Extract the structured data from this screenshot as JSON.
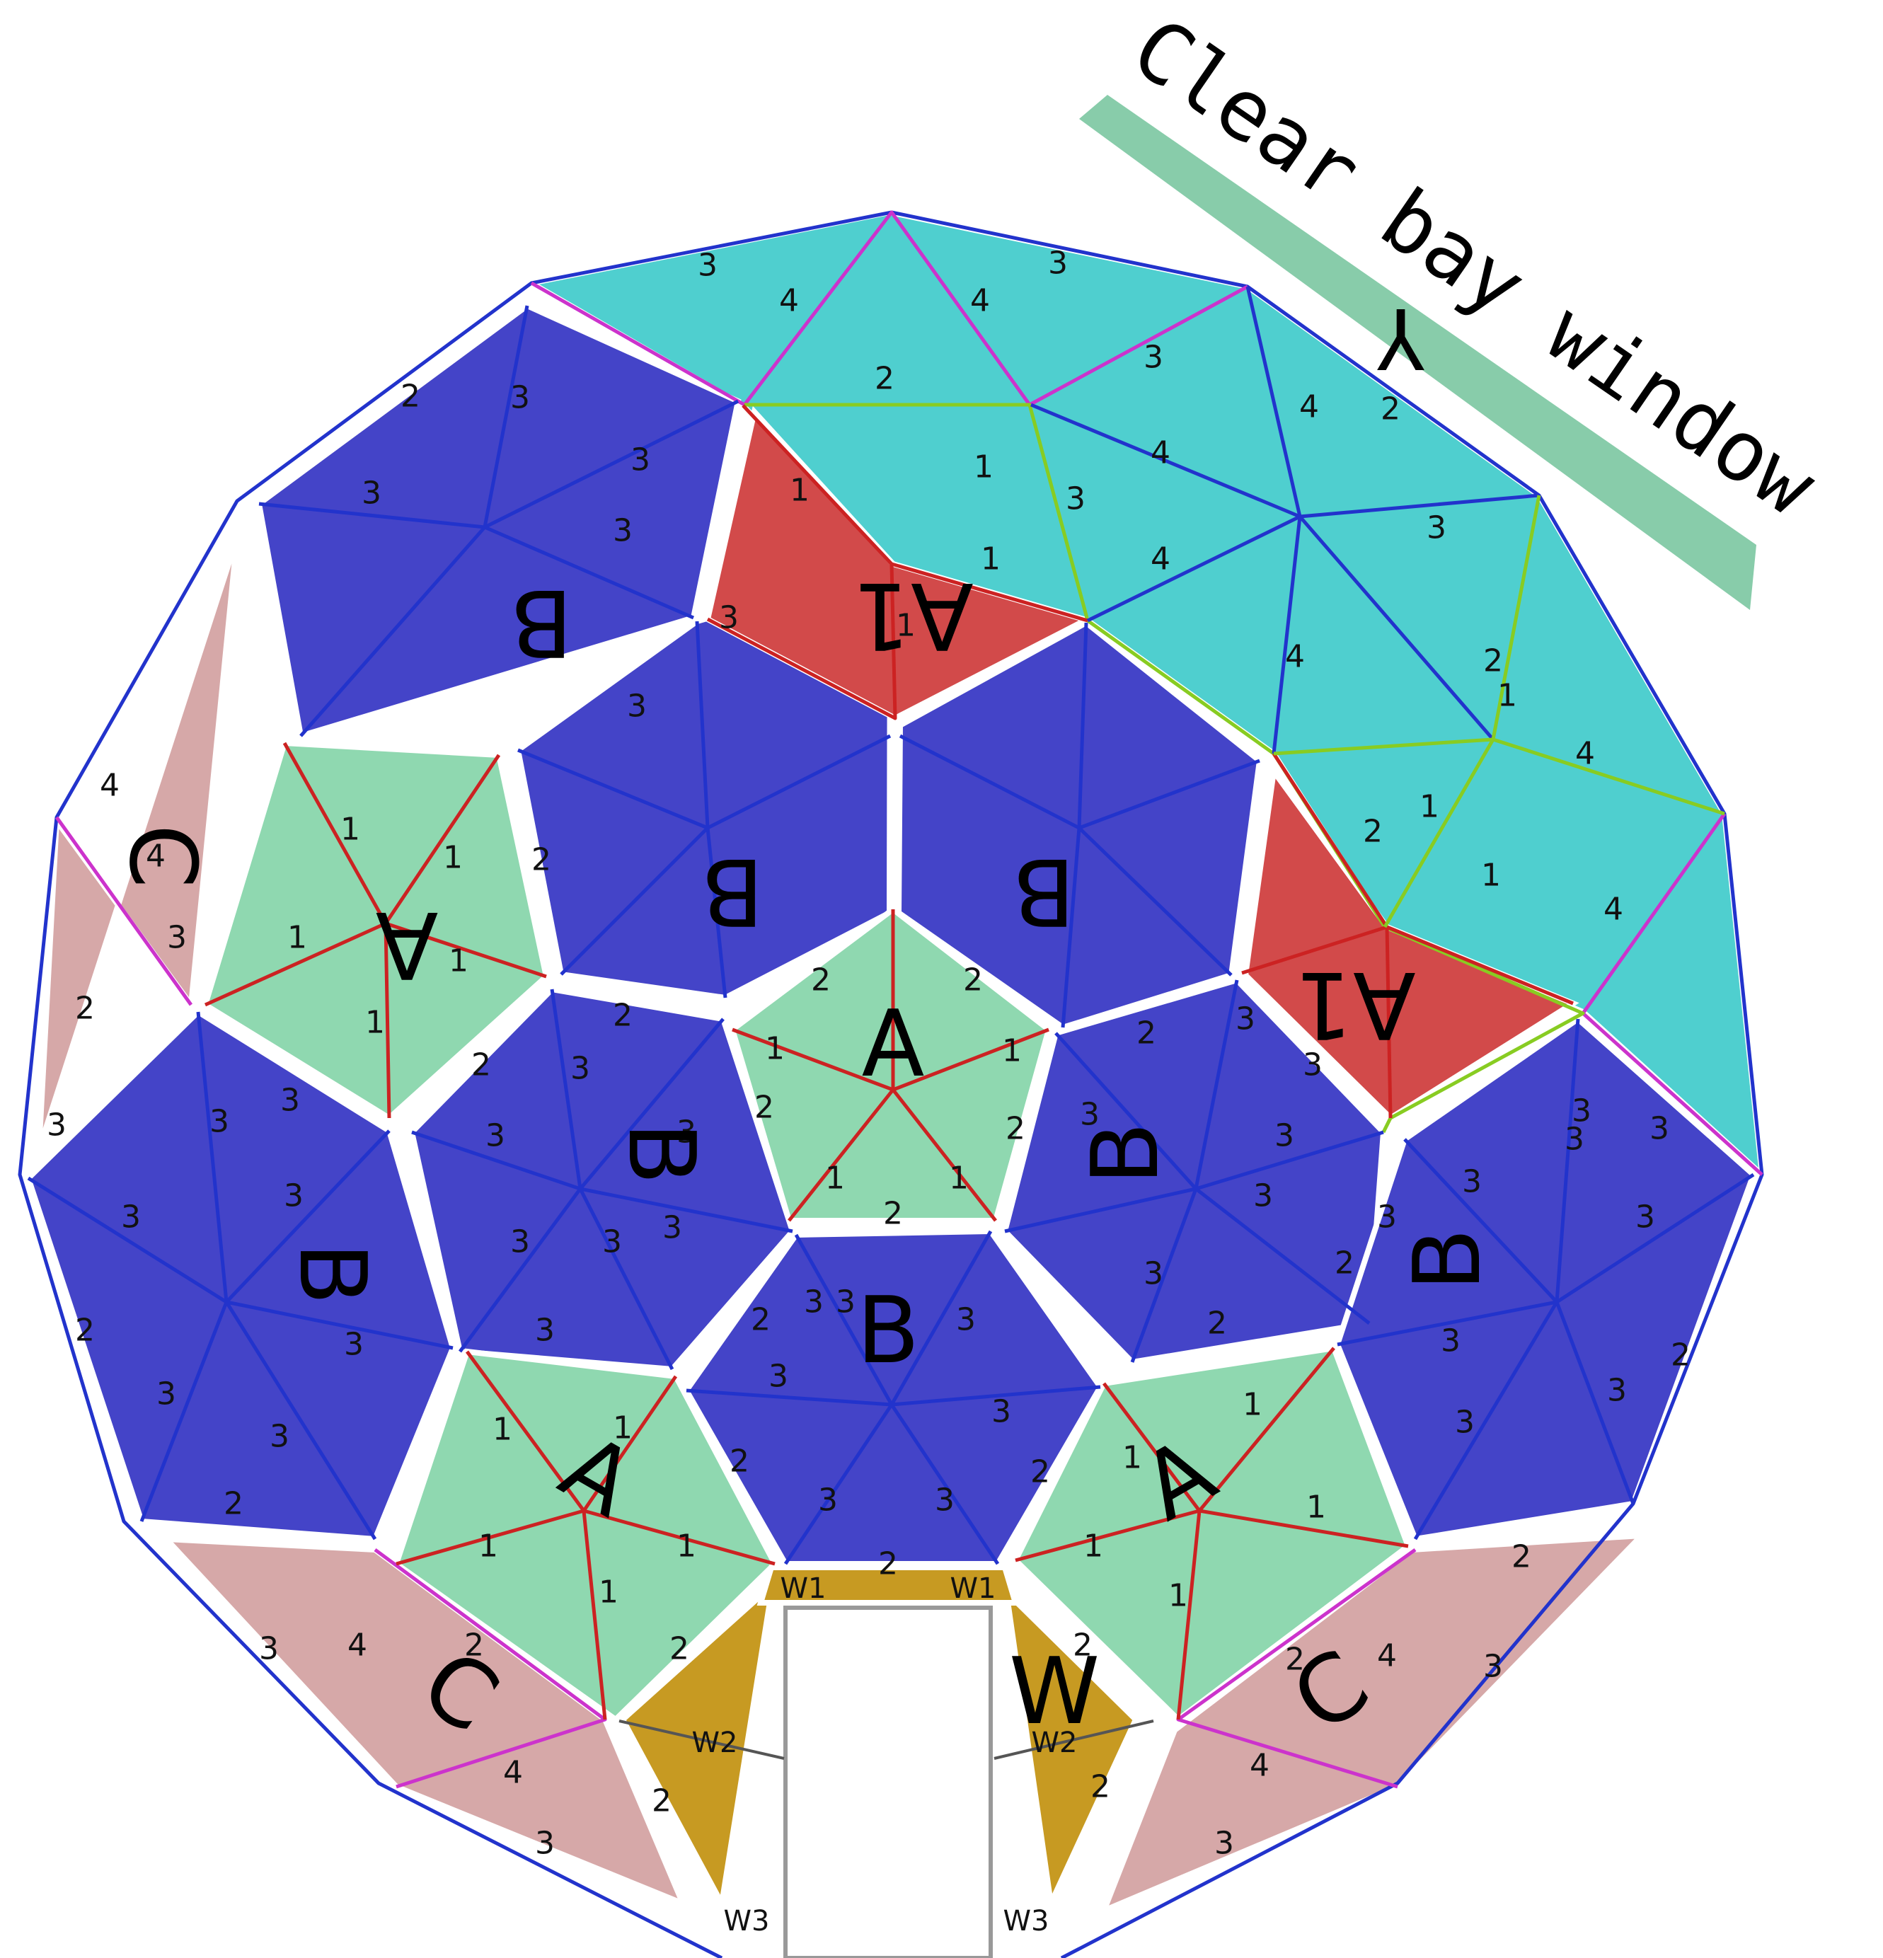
{
  "banner": {
    "text": "Clear bay window",
    "mark": "Y"
  },
  "panel_letters": {
    "A": "A",
    "A1": "A1",
    "B": "B",
    "C": "C",
    "W": "W"
  },
  "door_labels": {
    "w1": "W1",
    "w2": "W2",
    "w3": "W3"
  },
  "strut_numbers": [
    "1",
    "2",
    "3",
    "4"
  ],
  "colors": {
    "cyan": "#4fcfcf",
    "blue": "#4444c8",
    "red": "#d24a4a",
    "green": "#8fd8b0",
    "pink": "#d6a8a8",
    "gold": "#c79a22",
    "banner": "#88ccaa",
    "edge_blue": "#2233cc",
    "edge_green": "#88cc22",
    "edge_magenta": "#cc33cc",
    "edge_red": "#cc2222"
  }
}
